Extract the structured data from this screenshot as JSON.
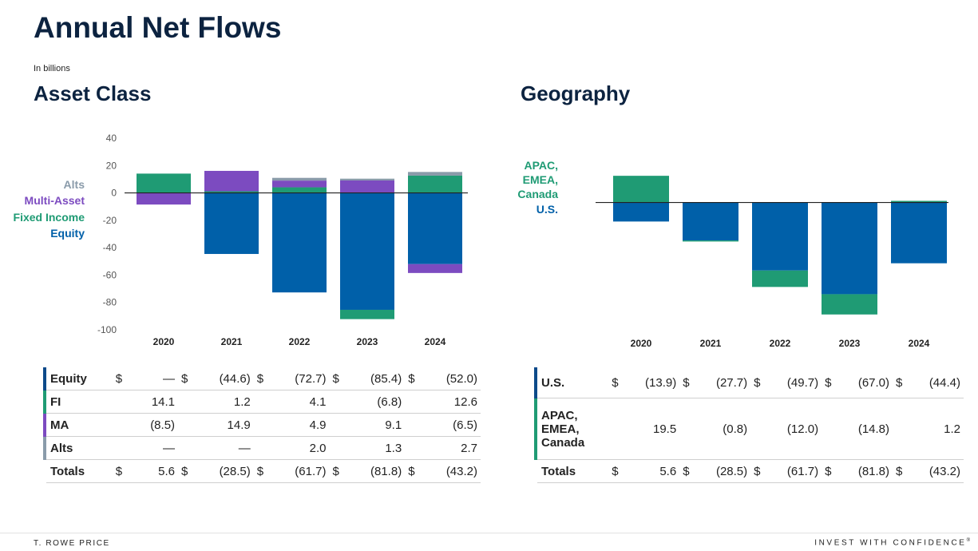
{
  "page": {
    "title": "Annual Net Flows",
    "subtitle": "In billions",
    "footer_left": "T. ROWE PRICE",
    "footer_right": "INVEST WITH CONFIDENCE",
    "footer_right_mark": "®"
  },
  "colors": {
    "equity": "#0060a9",
    "fixed_income": "#1f9b74",
    "multi_asset": "#7c4bc0",
    "alts": "#8a9baa",
    "us": "#0060a9",
    "apac": "#1f9b74"
  },
  "chart_data": [
    {
      "type": "bar",
      "stacked": true,
      "title": "Asset Class",
      "categories": [
        "2020",
        "2021",
        "2022",
        "2023",
        "2024"
      ],
      "ylim": [
        -100,
        40
      ],
      "yticks": [
        40,
        20,
        0,
        -20,
        -40,
        -60,
        -80,
        -100
      ],
      "ytick_labels": [
        "40",
        "20",
        "0",
        "-20",
        "-40",
        "-60",
        "-80",
        "-100"
      ],
      "grid": false,
      "legend_placement": "left",
      "series": [
        {
          "name": "Equity",
          "values": [
            0,
            -44.6,
            -72.7,
            -85.4,
            -52.0
          ]
        },
        {
          "name": "Fixed Income",
          "values": [
            14.1,
            1.2,
            4.1,
            -6.8,
            12.6
          ]
        },
        {
          "name": "Multi-Asset",
          "values": [
            -8.5,
            14.9,
            4.9,
            9.1,
            -6.5
          ]
        },
        {
          "name": "Alts",
          "values": [
            0,
            0,
            2.0,
            1.3,
            2.7
          ]
        }
      ]
    },
    {
      "type": "bar",
      "stacked": true,
      "title": "Geography",
      "categories": [
        "2020",
        "2021",
        "2022",
        "2023",
        "2024"
      ],
      "ylim": [
        -100,
        40
      ],
      "grid": false,
      "legend_placement": "left",
      "series": [
        {
          "name": "U.S.",
          "values": [
            -13.9,
            -27.7,
            -49.7,
            -67.0,
            -44.4
          ]
        },
        {
          "name": "APAC, EMEA, Canada",
          "values": [
            19.5,
            -0.8,
            -12.0,
            -14.8,
            1.2
          ]
        }
      ]
    }
  ],
  "asset_table": {
    "rows": [
      {
        "label": "Equity",
        "cells": [
          {
            "d": "$",
            "v": "—"
          },
          {
            "d": "$",
            "v": "(44.6)"
          },
          {
            "d": "$",
            "v": "(72.7)"
          },
          {
            "d": "$",
            "v": "(85.4)"
          },
          {
            "d": "$",
            "v": "(52.0)"
          }
        ]
      },
      {
        "label": "FI",
        "cells": [
          {
            "d": "",
            "v": "14.1"
          },
          {
            "d": "",
            "v": "1.2"
          },
          {
            "d": "",
            "v": "4.1"
          },
          {
            "d": "",
            "v": "(6.8)"
          },
          {
            "d": "",
            "v": "12.6"
          }
        ]
      },
      {
        "label": "MA",
        "cells": [
          {
            "d": "",
            "v": "(8.5)"
          },
          {
            "d": "",
            "v": "14.9"
          },
          {
            "d": "",
            "v": "4.9"
          },
          {
            "d": "",
            "v": "9.1"
          },
          {
            "d": "",
            "v": "(6.5)"
          }
        ]
      },
      {
        "label": "Alts",
        "cells": [
          {
            "d": "",
            "v": "—"
          },
          {
            "d": "",
            "v": "—"
          },
          {
            "d": "",
            "v": "2.0"
          },
          {
            "d": "",
            "v": "1.3"
          },
          {
            "d": "",
            "v": "2.7"
          }
        ]
      }
    ],
    "total": {
      "label": "Totals",
      "cells": [
        {
          "d": "$",
          "v": "5.6"
        },
        {
          "d": "$",
          "v": "(28.5)"
        },
        {
          "d": "$",
          "v": "(61.7)"
        },
        {
          "d": "$",
          "v": "(81.8)"
        },
        {
          "d": "$",
          "v": "(43.2)"
        }
      ]
    }
  },
  "geo_table": {
    "rows": [
      {
        "label": "U.S.",
        "cells": [
          {
            "d": "$",
            "v": "(13.9)"
          },
          {
            "d": "$",
            "v": "(27.7)"
          },
          {
            "d": "$",
            "v": "(49.7)"
          },
          {
            "d": "$",
            "v": "(67.0)"
          },
          {
            "d": "$",
            "v": "(44.4)"
          }
        ]
      },
      {
        "label": "APAC,\nEMEA,\nCanada",
        "cells": [
          {
            "d": "",
            "v": "19.5"
          },
          {
            "d": "",
            "v": "(0.8)"
          },
          {
            "d": "",
            "v": "(12.0)"
          },
          {
            "d": "",
            "v": "(14.8)"
          },
          {
            "d": "",
            "v": "1.2"
          }
        ]
      }
    ],
    "total": {
      "label": "Totals",
      "cells": [
        {
          "d": "$",
          "v": "5.6"
        },
        {
          "d": "$",
          "v": "(28.5)"
        },
        {
          "d": "$",
          "v": "(61.7)"
        },
        {
          "d": "$",
          "v": "(81.8)"
        },
        {
          "d": "$",
          "v": "(43.2)"
        }
      ]
    }
  }
}
